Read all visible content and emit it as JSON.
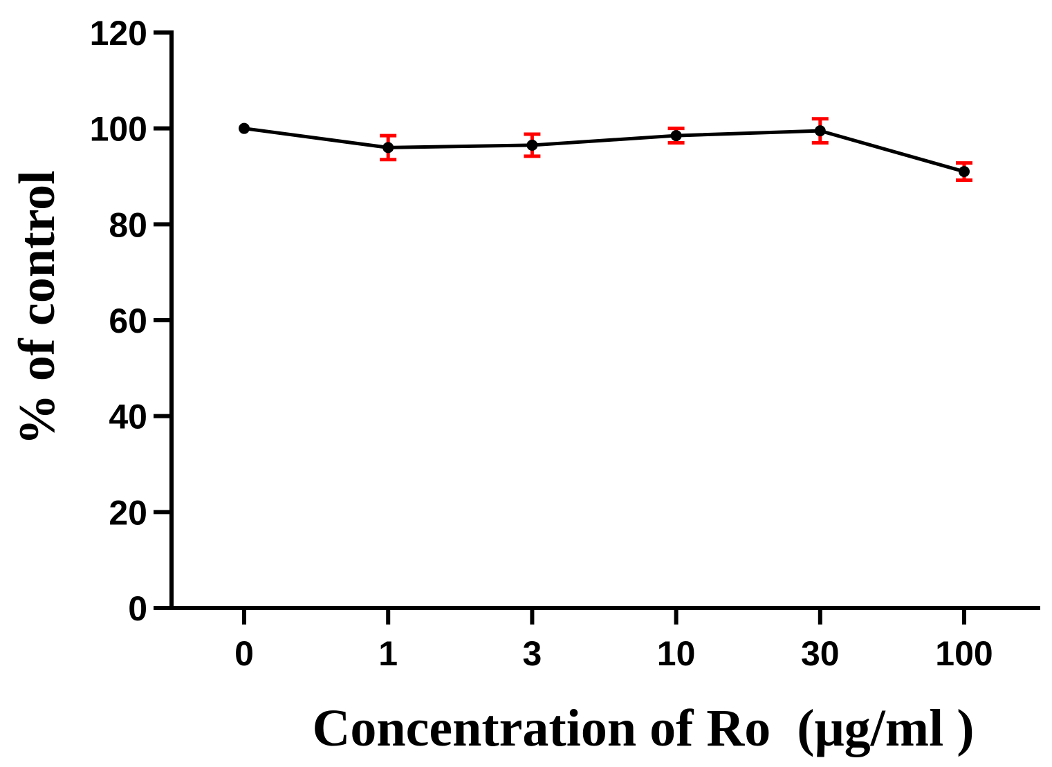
{
  "chart_data": {
    "type": "line",
    "title": "",
    "xlabel": "Concentration of Ro  (μg/ml )",
    "ylabel": "% of control",
    "categories": [
      "0",
      "1",
      "3",
      "10",
      "30",
      "100"
    ],
    "series": [
      {
        "name": "Ro",
        "values": [
          100,
          96,
          96.5,
          98.5,
          99.5,
          91
        ],
        "errors": [
          0,
          2.5,
          2.3,
          1.5,
          2.5,
          1.8
        ],
        "line_color": "#000000",
        "error_color": "#ff0000"
      }
    ],
    "ylim": [
      0,
      120
    ],
    "yticks": [
      "0",
      "20",
      "40",
      "60",
      "80",
      "100",
      "120"
    ],
    "grid": false
  }
}
